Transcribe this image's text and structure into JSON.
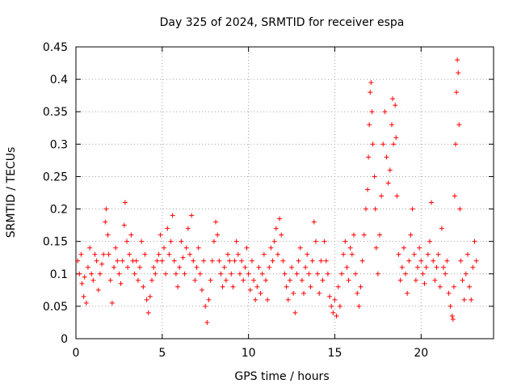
{
  "chart_data": {
    "type": "scatter",
    "title": "Day 325 of 2024, SRMTID for receiver espa",
    "xlabel": "GPS time / hours",
    "ylabel": "SRMTID / TECUs",
    "xlim": [
      0,
      24.2
    ],
    "ylim": [
      0,
      0.45
    ],
    "xticks": [
      0,
      5,
      10,
      15,
      20
    ],
    "xtick_labels": [
      "0",
      "5",
      "10",
      "15",
      "20"
    ],
    "yticks": [
      0,
      0.05,
      0.1,
      0.15,
      0.2,
      0.25,
      0.3,
      0.35,
      0.4,
      0.45
    ],
    "ytick_labels": [
      "0",
      "0.05",
      "0.1",
      "0.15",
      "0.2",
      "0.25",
      "0.3",
      "0.35",
      "0.4",
      "0.45"
    ],
    "grid": true,
    "marker": "+",
    "color": "#ff0000",
    "series": [
      {
        "name": "espa",
        "points": [
          [
            0.1,
            0.12
          ],
          [
            0.2,
            0.1
          ],
          [
            0.3,
            0.13
          ],
          [
            0.35,
            0.085
          ],
          [
            0.45,
            0.065
          ],
          [
            0.5,
            0.095
          ],
          [
            0.6,
            0.055
          ],
          [
            0.7,
            0.11
          ],
          [
            0.8,
            0.14
          ],
          [
            0.9,
            0.1
          ],
          [
            1.0,
            0.09
          ],
          [
            1.1,
            0.13
          ],
          [
            1.2,
            0.12
          ],
          [
            1.3,
            0.075
          ],
          [
            1.4,
            0.1
          ],
          [
            1.5,
            0.115
          ],
          [
            1.6,
            0.13
          ],
          [
            1.7,
            0.18
          ],
          [
            1.75,
            0.2
          ],
          [
            1.85,
            0.16
          ],
          [
            1.9,
            0.13
          ],
          [
            2.0,
            0.09
          ],
          [
            2.1,
            0.055
          ],
          [
            2.2,
            0.11
          ],
          [
            2.3,
            0.14
          ],
          [
            2.4,
            0.12
          ],
          [
            2.5,
            0.1
          ],
          [
            2.6,
            0.085
          ],
          [
            2.7,
            0.12
          ],
          [
            2.8,
            0.175
          ],
          [
            2.85,
            0.21
          ],
          [
            2.95,
            0.15
          ],
          [
            3.0,
            0.11
          ],
          [
            3.1,
            0.13
          ],
          [
            3.2,
            0.16
          ],
          [
            3.3,
            0.12
          ],
          [
            3.4,
            0.1
          ],
          [
            3.5,
            0.12
          ],
          [
            3.6,
            0.09
          ],
          [
            3.7,
            0.11
          ],
          [
            3.8,
            0.15
          ],
          [
            3.9,
            0.08
          ],
          [
            4.0,
            0.13
          ],
          [
            4.1,
            0.06
          ],
          [
            4.2,
            0.04
          ],
          [
            4.3,
            0.065
          ],
          [
            4.4,
            0.09
          ],
          [
            4.5,
            0.11
          ],
          [
            4.6,
            0.1
          ],
          [
            4.7,
            0.12
          ],
          [
            4.8,
            0.13
          ],
          [
            4.9,
            0.16
          ],
          [
            5.0,
            0.12
          ],
          [
            5.1,
            0.14
          ],
          [
            5.2,
            0.1
          ],
          [
            5.3,
            0.17
          ],
          [
            5.4,
            0.13
          ],
          [
            5.5,
            0.15
          ],
          [
            5.6,
            0.19
          ],
          [
            5.7,
            0.12
          ],
          [
            5.8,
            0.1
          ],
          [
            5.9,
            0.08
          ],
          [
            6.0,
            0.11
          ],
          [
            6.1,
            0.15
          ],
          [
            6.2,
            0.125
          ],
          [
            6.3,
            0.1
          ],
          [
            6.4,
            0.14
          ],
          [
            6.5,
            0.17
          ],
          [
            6.6,
            0.13
          ],
          [
            6.7,
            0.19
          ],
          [
            6.8,
            0.12
          ],
          [
            6.9,
            0.09
          ],
          [
            7.0,
            0.11
          ],
          [
            7.1,
            0.14
          ],
          [
            7.2,
            0.1
          ],
          [
            7.3,
            0.075
          ],
          [
            7.4,
            0.12
          ],
          [
            7.5,
            0.05
          ],
          [
            7.6,
            0.025
          ],
          [
            7.7,
            0.06
          ],
          [
            7.8,
            0.09
          ],
          [
            7.9,
            0.12
          ],
          [
            8.0,
            0.15
          ],
          [
            8.1,
            0.18
          ],
          [
            8.2,
            0.16
          ],
          [
            8.3,
            0.12
          ],
          [
            8.4,
            0.1
          ],
          [
            8.5,
            0.08
          ],
          [
            8.6,
            0.11
          ],
          [
            8.7,
            0.09
          ],
          [
            8.8,
            0.13
          ],
          [
            8.9,
            0.12
          ],
          [
            9.0,
            0.1
          ],
          [
            9.1,
            0.08
          ],
          [
            9.2,
            0.12
          ],
          [
            9.3,
            0.15
          ],
          [
            9.4,
            0.13
          ],
          [
            9.5,
            0.1
          ],
          [
            9.6,
            0.12
          ],
          [
            9.7,
            0.09
          ],
          [
            9.8,
            0.11
          ],
          [
            9.9,
            0.14
          ],
          [
            10.0,
            0.1
          ],
          [
            10.1,
            0.075
          ],
          [
            10.2,
            0.12
          ],
          [
            10.3,
            0.09
          ],
          [
            10.4,
            0.06
          ],
          [
            10.5,
            0.08
          ],
          [
            10.6,
            0.11
          ],
          [
            10.7,
            0.07
          ],
          [
            10.8,
            0.1
          ],
          [
            10.9,
            0.13
          ],
          [
            11.0,
            0.09
          ],
          [
            11.1,
            0.06
          ],
          [
            11.2,
            0.11
          ],
          [
            11.3,
            0.14
          ],
          [
            11.4,
            0.12
          ],
          [
            11.5,
            0.15
          ],
          [
            11.6,
            0.17
          ],
          [
            11.7,
            0.13
          ],
          [
            11.8,
            0.185
          ],
          [
            11.9,
            0.16
          ],
          [
            12.0,
            0.12
          ],
          [
            12.1,
            0.1
          ],
          [
            12.2,
            0.08
          ],
          [
            12.3,
            0.06
          ],
          [
            12.4,
            0.09
          ],
          [
            12.5,
            0.11
          ],
          [
            12.6,
            0.07
          ],
          [
            12.7,
            0.04
          ],
          [
            12.8,
            0.1
          ],
          [
            12.9,
            0.12
          ],
          [
            13.0,
            0.14
          ],
          [
            13.1,
            0.09
          ],
          [
            13.2,
            0.07
          ],
          [
            13.3,
            0.11
          ],
          [
            13.4,
            0.13
          ],
          [
            13.5,
            0.1
          ],
          [
            13.6,
            0.08
          ],
          [
            13.7,
            0.12
          ],
          [
            13.8,
            0.18
          ],
          [
            13.9,
            0.15
          ],
          [
            14.0,
            0.1
          ],
          [
            14.1,
            0.07
          ],
          [
            14.2,
            0.12
          ],
          [
            14.3,
            0.09
          ],
          [
            14.4,
            0.15
          ],
          [
            14.5,
            0.12
          ],
          [
            14.6,
            0.1
          ],
          [
            14.7,
            0.065
          ],
          [
            14.8,
            0.05
          ],
          [
            14.9,
            0.04
          ],
          [
            15.0,
            0.06
          ],
          [
            15.1,
            0.035
          ],
          [
            15.2,
            0.08
          ],
          [
            15.3,
            0.05
          ],
          [
            15.4,
            0.1
          ],
          [
            15.5,
            0.13
          ],
          [
            15.6,
            0.15
          ],
          [
            15.7,
            0.11
          ],
          [
            15.8,
            0.09
          ],
          [
            15.9,
            0.14
          ],
          [
            16.0,
            0.13
          ],
          [
            16.1,
            0.16
          ],
          [
            16.2,
            0.1
          ],
          [
            16.3,
            0.07
          ],
          [
            16.4,
            0.05
          ],
          [
            16.5,
            0.08
          ],
          [
            16.6,
            0.12
          ],
          [
            16.7,
            0.16
          ],
          [
            16.8,
            0.2
          ],
          [
            16.9,
            0.23
          ],
          [
            16.95,
            0.28
          ],
          [
            17.0,
            0.33
          ],
          [
            17.05,
            0.38
          ],
          [
            17.1,
            0.395
          ],
          [
            17.15,
            0.35
          ],
          [
            17.2,
            0.3
          ],
          [
            17.3,
            0.25
          ],
          [
            17.35,
            0.2
          ],
          [
            17.4,
            0.14
          ],
          [
            17.5,
            0.1
          ],
          [
            17.6,
            0.16
          ],
          [
            17.7,
            0.22
          ],
          [
            17.8,
            0.3
          ],
          [
            17.9,
            0.35
          ],
          [
            18.0,
            0.28
          ],
          [
            18.1,
            0.24
          ],
          [
            18.2,
            0.26
          ],
          [
            18.3,
            0.33
          ],
          [
            18.35,
            0.37
          ],
          [
            18.4,
            0.3
          ],
          [
            18.5,
            0.36
          ],
          [
            18.55,
            0.31
          ],
          [
            18.6,
            0.22
          ],
          [
            18.7,
            0.13
          ],
          [
            18.8,
            0.09
          ],
          [
            18.9,
            0.11
          ],
          [
            19.0,
            0.14
          ],
          [
            19.1,
            0.1
          ],
          [
            19.2,
            0.07
          ],
          [
            19.3,
            0.12
          ],
          [
            19.4,
            0.16
          ],
          [
            19.5,
            0.2
          ],
          [
            19.6,
            0.13
          ],
          [
            19.7,
            0.09
          ],
          [
            19.8,
            0.11
          ],
          [
            19.9,
            0.14
          ],
          [
            20.0,
            0.12
          ],
          [
            20.1,
            0.1
          ],
          [
            20.2,
            0.085
          ],
          [
            20.3,
            0.11
          ],
          [
            20.4,
            0.13
          ],
          [
            20.5,
            0.15
          ],
          [
            20.6,
            0.21
          ],
          [
            20.7,
            0.12
          ],
          [
            20.8,
            0.09
          ],
          [
            20.9,
            0.11
          ],
          [
            21.0,
            0.13
          ],
          [
            21.1,
            0.08
          ],
          [
            21.2,
            0.17
          ],
          [
            21.3,
            0.11
          ],
          [
            21.4,
            0.1
          ],
          [
            21.5,
            0.12
          ],
          [
            21.6,
            0.07
          ],
          [
            21.7,
            0.05
          ],
          [
            21.8,
            0.035
          ],
          [
            21.85,
            0.03
          ],
          [
            21.9,
            0.08
          ],
          [
            21.95,
            0.22
          ],
          [
            22.0,
            0.3
          ],
          [
            22.05,
            0.38
          ],
          [
            22.1,
            0.43
          ],
          [
            22.15,
            0.41
          ],
          [
            22.2,
            0.33
          ],
          [
            22.25,
            0.2
          ],
          [
            22.3,
            0.12
          ],
          [
            22.4,
            0.09
          ],
          [
            22.5,
            0.06
          ],
          [
            22.6,
            0.1
          ],
          [
            22.7,
            0.13
          ],
          [
            22.8,
            0.08
          ],
          [
            22.9,
            0.06
          ],
          [
            23.0,
            0.11
          ],
          [
            23.1,
            0.15
          ],
          [
            23.2,
            0.12
          ]
        ]
      }
    ]
  }
}
